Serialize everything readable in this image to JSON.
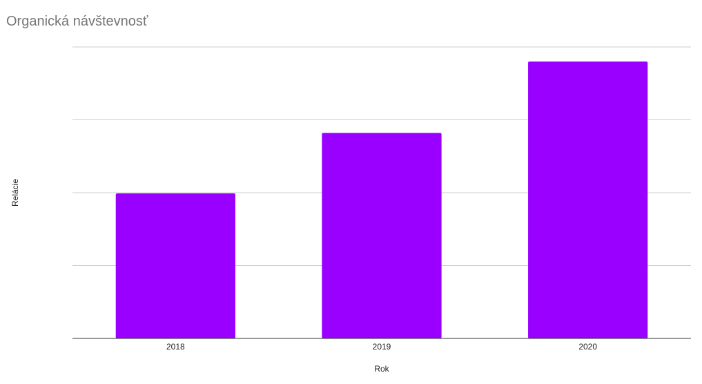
{
  "chart_data": {
    "type": "bar",
    "title": "Organická návštevnosť",
    "xlabel": "Rok",
    "ylabel": "Relácie",
    "categories": [
      "2018",
      "2019",
      "2020"
    ],
    "values": [
      199,
      282,
      380
    ],
    "ylim": [
      0,
      400
    ],
    "y_tick_labels_shown": false,
    "grid": true,
    "legend": "none",
    "colors": {
      "bar": "#9900ff",
      "gridline": "#cccccc",
      "baseline": "#333333",
      "title": "#757575"
    }
  }
}
